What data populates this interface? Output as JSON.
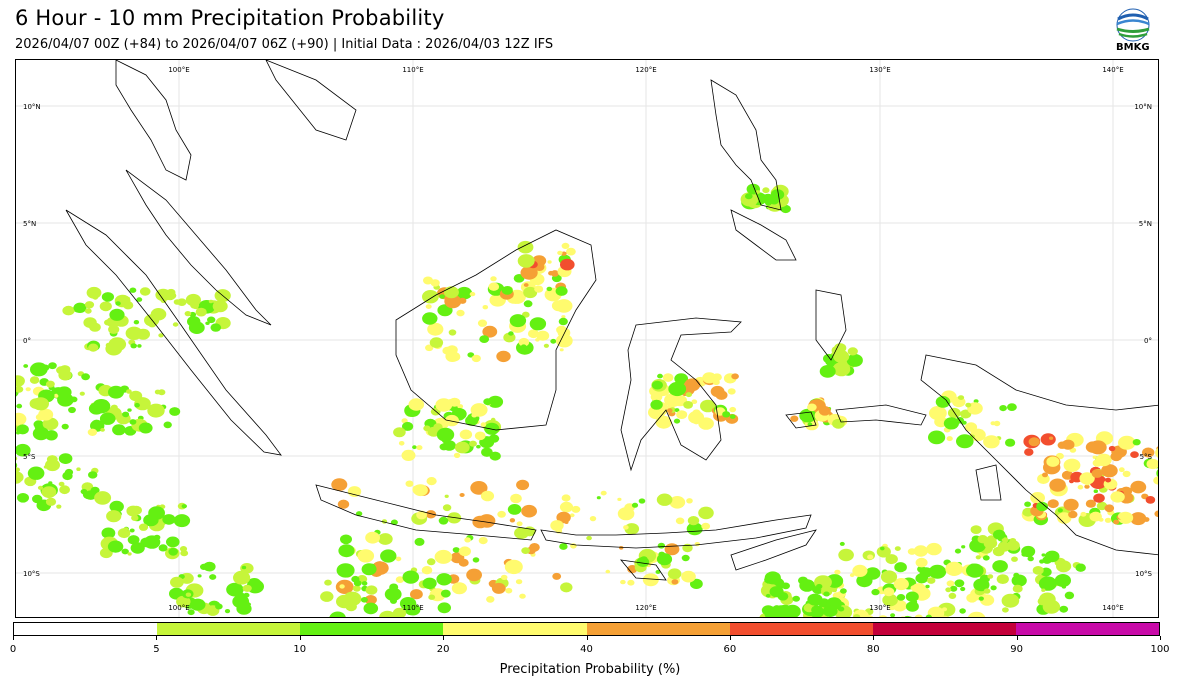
{
  "header": {
    "title": "6 Hour - 10 mm Precipitation Probability",
    "subtitle": "2026/04/07 00Z (+84) to 2026/04/07 06Z (+90) | Initial Data : 2026/04/03 12Z IFS"
  },
  "logo": {
    "text": "BMKG",
    "icon": "bmkg-logo-icon"
  },
  "map": {
    "lon_labels": [
      "100°E",
      "110°E",
      "120°E",
      "130°E",
      "140°E"
    ],
    "lat_labels": [
      "10°N",
      "5°N",
      "0°",
      "5°S",
      "10°S"
    ],
    "grid": true
  },
  "colorbar": {
    "label": "Precipitation Probability (%)",
    "bins": [
      {
        "from": 0,
        "to": 5,
        "color": "#ffffff"
      },
      {
        "from": 5,
        "to": 10,
        "color": "#c6f53a"
      },
      {
        "from": 10,
        "to": 20,
        "color": "#64f012"
      },
      {
        "from": 20,
        "to": 40,
        "color": "#fffb6e"
      },
      {
        "from": 40,
        "to": 60,
        "color": "#f5a035"
      },
      {
        "from": 60,
        "to": 80,
        "color": "#f24e2e"
      },
      {
        "from": 80,
        "to": 90,
        "color": "#c4003a"
      },
      {
        "from": 90,
        "to": 100,
        "color": "#c80aa8"
      }
    ],
    "tick_labels": [
      "0",
      "5",
      "10",
      "20",
      "40",
      "60",
      "80",
      "90",
      "100"
    ]
  }
}
